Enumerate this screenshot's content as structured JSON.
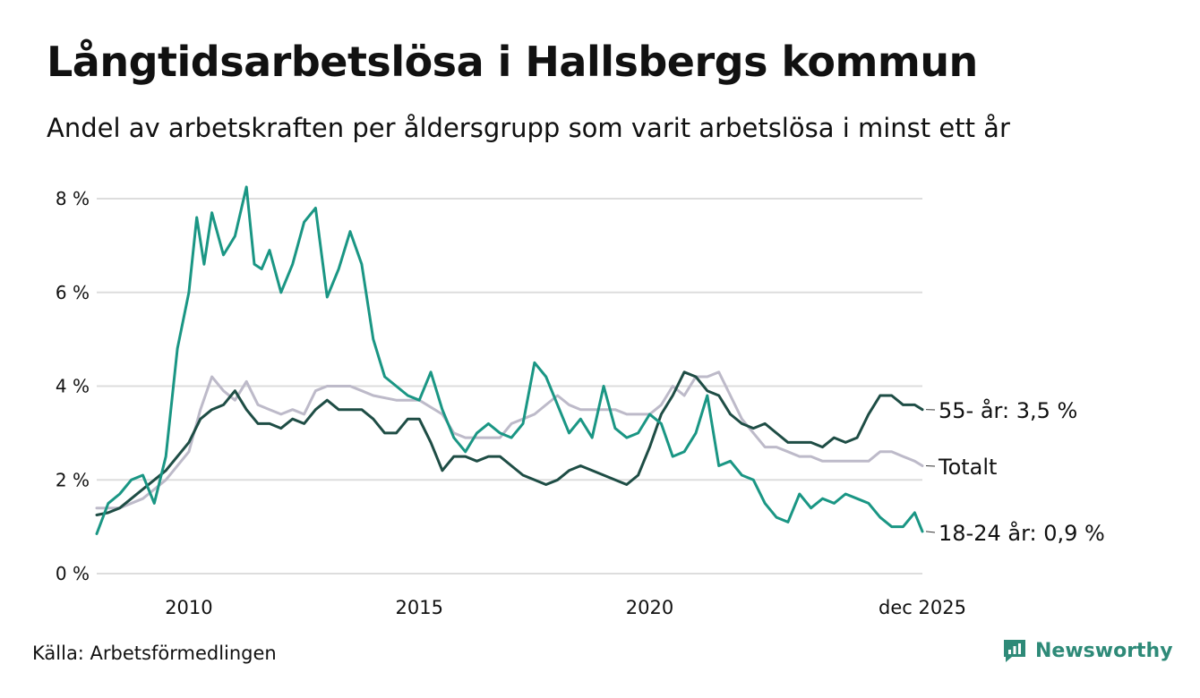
{
  "title": "Långtidsarbetslösa i Hallsbergs kommun",
  "subtitle": "Andel av arbetskraften per åldersgrupp som varit arbetslösa i minst ett år",
  "source": "Källa: Arbetsförmedlingen",
  "brand": {
    "name": "Newsworthy",
    "icon": "bar-chart-speech-bubble-icon",
    "color": "#2e8a78"
  },
  "chart_data": {
    "type": "line",
    "title": "Långtidsarbetslösa i Hallsbergs kommun",
    "xlabel": "",
    "ylabel": "",
    "xlim": [
      2008,
      2025.917
    ],
    "ylim": [
      0,
      8
    ],
    "grid": true,
    "x_ticks": [
      {
        "value": 2010,
        "label": "2010"
      },
      {
        "value": 2015,
        "label": "2015"
      },
      {
        "value": 2020,
        "label": "2020"
      },
      {
        "value": 2025.917,
        "label": "dec 2025"
      }
    ],
    "y_ticks": [
      {
        "value": 0,
        "label": "0 %"
      },
      {
        "value": 2,
        "label": "2 %"
      },
      {
        "value": 4,
        "label": "4 %"
      },
      {
        "value": 6,
        "label": "6 %"
      },
      {
        "value": 8,
        "label": "8 %"
      }
    ],
    "series": [
      {
        "name": "Totalt",
        "end_label": "Totalt",
        "color": "#bdbac9",
        "x": [
          2008.0,
          2008.5,
          2009.0,
          2009.5,
          2010.0,
          2010.25,
          2010.5,
          2010.75,
          2011.0,
          2011.25,
          2011.5,
          2011.75,
          2012.0,
          2012.25,
          2012.5,
          2012.75,
          2013.0,
          2013.25,
          2013.5,
          2013.75,
          2014.0,
          2014.5,
          2015.0,
          2015.5,
          2015.75,
          2016.0,
          2016.25,
          2016.5,
          2016.75,
          2017.0,
          2017.25,
          2017.5,
          2017.75,
          2018.0,
          2018.25,
          2018.5,
          2018.75,
          2019.0,
          2019.25,
          2019.5,
          2019.75,
          2020.0,
          2020.25,
          2020.5,
          2020.75,
          2021.0,
          2021.25,
          2021.5,
          2021.75,
          2022.0,
          2022.25,
          2022.5,
          2022.75,
          2023.0,
          2023.25,
          2023.5,
          2023.75,
          2024.0,
          2024.25,
          2024.5,
          2024.75,
          2025.0,
          2025.25,
          2025.5,
          2025.75,
          2025.917
        ],
        "y": [
          1.4,
          1.4,
          1.6,
          2.0,
          2.6,
          3.5,
          4.2,
          3.9,
          3.7,
          4.1,
          3.6,
          3.5,
          3.4,
          3.5,
          3.4,
          3.9,
          4.0,
          4.0,
          4.0,
          3.9,
          3.8,
          3.7,
          3.7,
          3.4,
          3.0,
          2.9,
          2.9,
          2.9,
          2.9,
          3.2,
          3.3,
          3.4,
          3.6,
          3.8,
          3.6,
          3.5,
          3.5,
          3.5,
          3.5,
          3.4,
          3.4,
          3.4,
          3.6,
          4.0,
          3.8,
          4.2,
          4.2,
          4.3,
          3.8,
          3.3,
          3.0,
          2.7,
          2.7,
          2.6,
          2.5,
          2.5,
          2.4,
          2.4,
          2.4,
          2.4,
          2.4,
          2.6,
          2.6,
          2.5,
          2.4,
          2.3
        ]
      },
      {
        "name": "55- år",
        "end_label": "55- år: 3,5 %",
        "color": "#1e4d45",
        "x": [
          2008.0,
          2008.25,
          2008.5,
          2008.75,
          2009.0,
          2009.25,
          2009.5,
          2009.75,
          2010.0,
          2010.25,
          2010.5,
          2010.75,
          2011.0,
          2011.25,
          2011.5,
          2011.75,
          2012.0,
          2012.25,
          2012.5,
          2012.75,
          2013.0,
          2013.25,
          2013.5,
          2013.75,
          2014.0,
          2014.25,
          2014.5,
          2014.75,
          2015.0,
          2015.25,
          2015.5,
          2015.75,
          2016.0,
          2016.25,
          2016.5,
          2016.75,
          2017.0,
          2017.25,
          2017.5,
          2017.75,
          2018.0,
          2018.25,
          2018.5,
          2018.75,
          2019.0,
          2019.25,
          2019.5,
          2019.75,
          2020.0,
          2020.25,
          2020.5,
          2020.75,
          2021.0,
          2021.25,
          2021.5,
          2021.75,
          2022.0,
          2022.25,
          2022.5,
          2022.75,
          2023.0,
          2023.25,
          2023.5,
          2023.75,
          2024.0,
          2024.25,
          2024.5,
          2024.75,
          2025.0,
          2025.25,
          2025.5,
          2025.75,
          2025.917
        ],
        "y": [
          1.25,
          1.3,
          1.4,
          1.6,
          1.8,
          2.0,
          2.2,
          2.5,
          2.8,
          3.3,
          3.5,
          3.6,
          3.9,
          3.5,
          3.2,
          3.2,
          3.1,
          3.3,
          3.2,
          3.5,
          3.7,
          3.5,
          3.5,
          3.5,
          3.3,
          3.0,
          3.0,
          3.3,
          3.3,
          2.8,
          2.2,
          2.5,
          2.5,
          2.4,
          2.5,
          2.5,
          2.3,
          2.1,
          2.0,
          1.9,
          2.0,
          2.2,
          2.3,
          2.2,
          2.1,
          2.0,
          1.9,
          2.1,
          2.7,
          3.4,
          3.8,
          4.3,
          4.2,
          3.9,
          3.8,
          3.4,
          3.2,
          3.1,
          3.2,
          3.0,
          2.8,
          2.8,
          2.8,
          2.7,
          2.9,
          2.8,
          2.9,
          3.4,
          3.8,
          3.8,
          3.6,
          3.6,
          3.5
        ]
      },
      {
        "name": "18-24 år",
        "end_label": "18-24 år: 0,9 %",
        "color": "#1a9684",
        "x": [
          2008.0,
          2008.25,
          2008.5,
          2008.75,
          2009.0,
          2009.25,
          2009.5,
          2009.75,
          2010.0,
          2010.17,
          2010.33,
          2010.5,
          2010.75,
          2011.0,
          2011.25,
          2011.42,
          2011.58,
          2011.75,
          2012.0,
          2012.25,
          2012.5,
          2012.75,
          2013.0,
          2013.25,
          2013.5,
          2013.75,
          2014.0,
          2014.25,
          2014.5,
          2014.75,
          2015.0,
          2015.25,
          2015.5,
          2015.75,
          2016.0,
          2016.25,
          2016.5,
          2016.75,
          2017.0,
          2017.25,
          2017.5,
          2017.75,
          2018.0,
          2018.25,
          2018.5,
          2018.75,
          2019.0,
          2019.25,
          2019.5,
          2019.75,
          2020.0,
          2020.25,
          2020.5,
          2020.75,
          2021.0,
          2021.25,
          2021.5,
          2021.75,
          2022.0,
          2022.25,
          2022.5,
          2022.75,
          2023.0,
          2023.25,
          2023.5,
          2023.75,
          2024.0,
          2024.25,
          2024.5,
          2024.75,
          2025.0,
          2025.25,
          2025.5,
          2025.75,
          2025.917
        ],
        "y": [
          0.85,
          1.5,
          1.7,
          2.0,
          2.1,
          1.5,
          2.5,
          4.8,
          6.0,
          7.6,
          6.6,
          7.7,
          6.8,
          7.2,
          8.25,
          6.6,
          6.5,
          6.9,
          6.0,
          6.6,
          7.5,
          7.8,
          5.9,
          6.5,
          7.3,
          6.6,
          5.0,
          4.2,
          4.0,
          3.8,
          3.7,
          4.3,
          3.5,
          2.9,
          2.6,
          3.0,
          3.2,
          3.0,
          2.9,
          3.2,
          4.5,
          4.2,
          3.6,
          3.0,
          3.3,
          2.9,
          4.0,
          3.1,
          2.9,
          3.0,
          3.4,
          3.2,
          2.5,
          2.6,
          3.0,
          3.8,
          2.3,
          2.4,
          2.1,
          2.0,
          1.5,
          1.2,
          1.1,
          1.7,
          1.4,
          1.6,
          1.5,
          1.7,
          1.6,
          1.5,
          1.2,
          1.0,
          1.0,
          1.3,
          0.9
        ]
      }
    ]
  }
}
